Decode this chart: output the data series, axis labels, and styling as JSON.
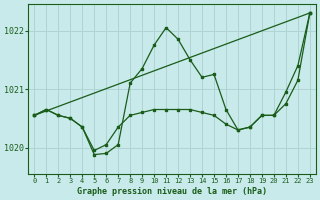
{
  "title": "Graphe pression niveau de la mer (hPa)",
  "bg_color": "#c8eaea",
  "grid_color": "#b0d4d4",
  "line_color": "#1a5c1a",
  "x_labels": [
    "0",
    "1",
    "2",
    "3",
    "4",
    "5",
    "6",
    "7",
    "8",
    "9",
    "10",
    "11",
    "12",
    "13",
    "14",
    "15",
    "16",
    "17",
    "18",
    "19",
    "20",
    "21",
    "22",
    "23"
  ],
  "ylim": [
    1019.55,
    1022.45
  ],
  "yticks": [
    1020,
    1021,
    1022
  ],
  "ytick_top": 1022,
  "series_diagonal": [
    [
      0,
      1020.55
    ],
    [
      23,
      1022.3
    ]
  ],
  "series_wavy": [
    [
      0,
      1020.55
    ],
    [
      1,
      1020.65
    ],
    [
      2,
      1020.55
    ],
    [
      3,
      1020.5
    ],
    [
      4,
      1020.35
    ],
    [
      5,
      1019.88
    ],
    [
      6,
      1019.9
    ],
    [
      7,
      1020.05
    ],
    [
      8,
      1021.1
    ],
    [
      9,
      1021.35
    ],
    [
      10,
      1021.75
    ],
    [
      11,
      1022.05
    ],
    [
      12,
      1021.85
    ],
    [
      13,
      1021.5
    ],
    [
      14,
      1021.2
    ],
    [
      15,
      1021.25
    ],
    [
      16,
      1020.65
    ],
    [
      17,
      1020.3
    ],
    [
      18,
      1020.35
    ],
    [
      19,
      1020.55
    ],
    [
      20,
      1020.55
    ],
    [
      21,
      1020.95
    ],
    [
      22,
      1021.4
    ],
    [
      23,
      1022.3
    ]
  ],
  "series_flat": [
    [
      0,
      1020.55
    ],
    [
      1,
      1020.65
    ],
    [
      2,
      1020.55
    ],
    [
      3,
      1020.5
    ],
    [
      4,
      1020.35
    ],
    [
      5,
      1019.95
    ],
    [
      6,
      1020.05
    ],
    [
      7,
      1020.35
    ],
    [
      8,
      1020.55
    ],
    [
      9,
      1020.6
    ],
    [
      10,
      1020.65
    ],
    [
      11,
      1020.65
    ],
    [
      12,
      1020.65
    ],
    [
      13,
      1020.65
    ],
    [
      14,
      1020.6
    ],
    [
      15,
      1020.55
    ],
    [
      16,
      1020.4
    ],
    [
      17,
      1020.3
    ],
    [
      18,
      1020.35
    ],
    [
      19,
      1020.55
    ],
    [
      20,
      1020.55
    ],
    [
      21,
      1020.75
    ],
    [
      22,
      1021.15
    ],
    [
      23,
      1022.3
    ]
  ]
}
